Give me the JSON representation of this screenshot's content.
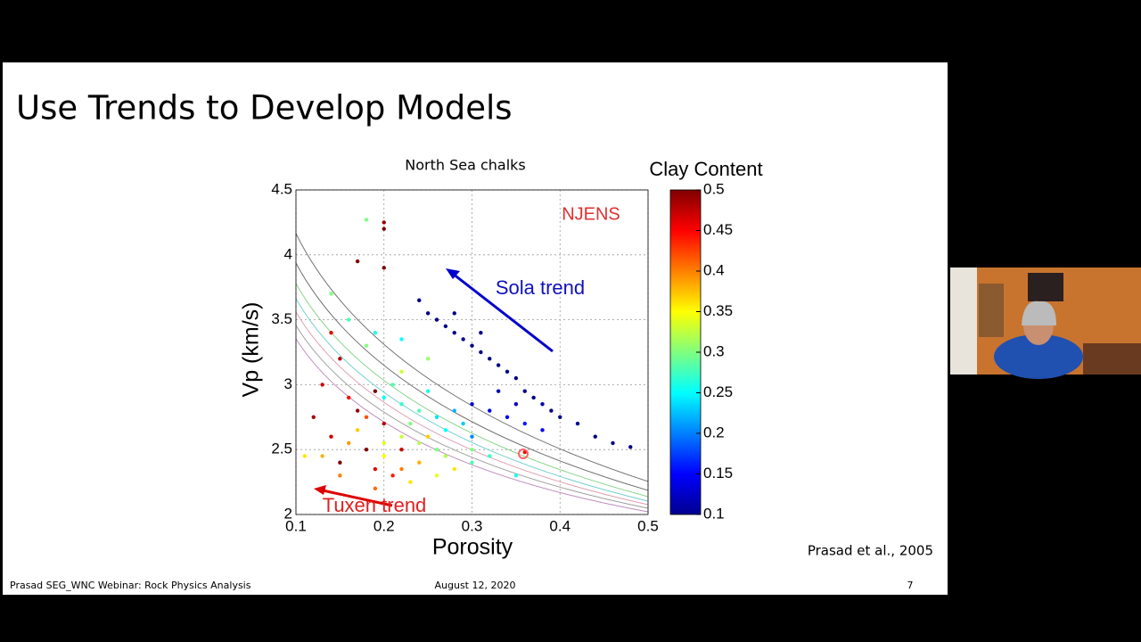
{
  "slide": {
    "title": "Use Trends to Develop Models",
    "citation": "Prasad et al., 2005",
    "footer": {
      "left": "Prasad SEG_WNC Webinar: Rock Physics Analysis",
      "center": "August 12, 2020",
      "page": "7"
    }
  },
  "chart_data": {
    "type": "scatter",
    "title": "North Sea chalks",
    "x_label": "Porosity",
    "y_label": "Vp (km/s)",
    "colorbar_label": "Clay Content",
    "colormap": "jet",
    "grid": true,
    "annotations": [
      "NJENS",
      "Sola trend",
      "Tuxen trend"
    ],
    "xlim": [
      0.1,
      0.5
    ],
    "xticks": [
      0.1,
      0.2,
      0.3,
      0.4,
      0.5
    ],
    "ylim": [
      2,
      4.5
    ],
    "yticks": [
      2,
      2.5,
      3,
      3.5,
      4,
      4.5
    ],
    "clim": [
      0.1,
      0.5
    ],
    "cticks": [
      0.1,
      0.15,
      0.2,
      0.25,
      0.3,
      0.35,
      0.4,
      0.45,
      0.5
    ],
    "x": [
      0.24,
      0.25,
      0.26,
      0.27,
      0.28,
      0.29,
      0.3,
      0.31,
      0.32,
      0.33,
      0.34,
      0.35,
      0.36,
      0.37,
      0.38,
      0.39,
      0.4,
      0.42,
      0.44,
      0.46,
      0.48,
      0.3,
      0.32,
      0.34,
      0.36,
      0.38,
      0.33,
      0.35,
      0.28,
      0.31,
      0.2,
      0.22,
      0.24,
      0.26,
      0.28,
      0.25,
      0.23,
      0.27,
      0.29,
      0.3,
      0.21,
      0.18,
      0.16,
      0.14,
      0.19,
      0.22,
      0.26,
      0.3,
      0.32,
      0.35,
      0.24,
      0.12,
      0.14,
      0.15,
      0.16,
      0.17,
      0.18,
      0.19,
      0.2,
      0.21,
      0.13,
      0.15,
      0.17,
      0.2,
      0.2,
      0.2,
      0.14,
      0.19,
      0.22,
      0.11,
      0.13,
      0.15,
      0.17,
      0.18,
      0.2,
      0.22,
      0.23,
      0.24,
      0.26,
      0.28,
      0.16,
      0.19,
      0.25,
      0.18,
      0.22,
      0.27,
      0.3,
      0.2,
      0.25,
      0.22,
      0.36
    ],
    "y": [
      3.65,
      3.55,
      3.5,
      3.45,
      3.4,
      3.35,
      3.3,
      3.25,
      3.2,
      3.15,
      3.1,
      3.05,
      2.95,
      2.9,
      2.85,
      2.8,
      2.75,
      2.7,
      2.6,
      2.55,
      2.52,
      2.85,
      2.8,
      2.75,
      2.7,
      2.65,
      2.95,
      2.85,
      3.55,
      3.4,
      2.9,
      2.85,
      2.8,
      2.75,
      2.8,
      2.95,
      2.7,
      2.65,
      2.7,
      2.6,
      3.0,
      3.3,
      3.5,
      3.7,
      3.4,
      3.35,
      2.5,
      2.4,
      2.45,
      2.3,
      2.55,
      2.75,
      2.6,
      2.4,
      2.9,
      2.8,
      2.5,
      2.35,
      2.7,
      2.3,
      3.0,
      3.2,
      3.95,
      4.25,
      4.2,
      3.9,
      3.4,
      2.95,
      2.5,
      2.45,
      2.45,
      2.3,
      2.65,
      2.75,
      2.45,
      2.35,
      2.25,
      2.4,
      2.3,
      2.35,
      2.55,
      2.2,
      2.6,
      4.27,
      2.6,
      2.45,
      2.5,
      2.55,
      3.2,
      3.1,
      2.48
    ],
    "c": [
      0.1,
      0.1,
      0.1,
      0.1,
      0.1,
      0.11,
      0.1,
      0.1,
      0.1,
      0.1,
      0.11,
      0.1,
      0.1,
      0.1,
      0.12,
      0.1,
      0.1,
      0.11,
      0.1,
      0.1,
      0.1,
      0.13,
      0.14,
      0.15,
      0.16,
      0.15,
      0.12,
      0.13,
      0.1,
      0.1,
      0.25,
      0.27,
      0.28,
      0.24,
      0.22,
      0.26,
      0.3,
      0.25,
      0.23,
      0.2,
      0.28,
      0.3,
      0.28,
      0.3,
      0.26,
      0.25,
      0.3,
      0.28,
      0.27,
      0.26,
      0.32,
      0.48,
      0.47,
      0.5,
      0.45,
      0.49,
      0.5,
      0.46,
      0.48,
      0.44,
      0.47,
      0.48,
      0.5,
      0.49,
      0.5,
      0.5,
      0.46,
      0.5,
      0.47,
      0.36,
      0.38,
      0.4,
      0.37,
      0.42,
      0.35,
      0.4,
      0.36,
      0.38,
      0.34,
      0.36,
      0.39,
      0.41,
      0.37,
      0.3,
      0.33,
      0.32,
      0.3,
      0.34,
      0.31,
      0.33,
      0.45
    ]
  }
}
